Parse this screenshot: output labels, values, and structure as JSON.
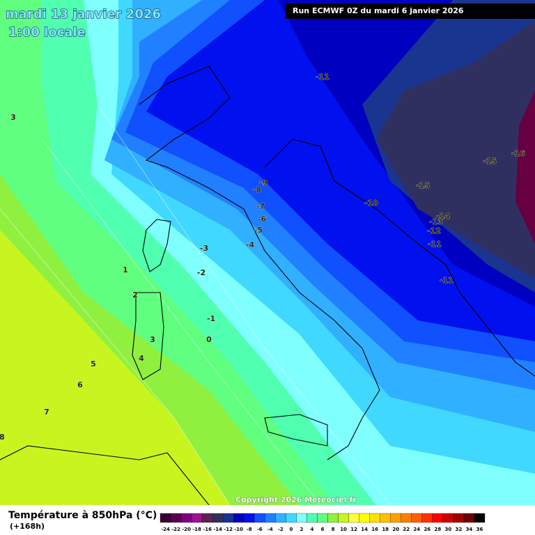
{
  "header": {
    "title": "mardi 13 janvier 2026",
    "time": "1:00 locale",
    "run": "Run ECMWF 0Z du mardi 6 janvier 2026"
  },
  "map": {
    "contour_labels": [
      -11,
      3,
      -16,
      -15,
      -15,
      -9,
      -8,
      -10,
      -7,
      -14,
      -6,
      -13,
      -5,
      -12,
      -4,
      -3,
      -11,
      1,
      -2,
      -11,
      2,
      -1,
      0,
      3,
      4,
      5,
      6,
      7,
      8
    ]
  },
  "footer": {
    "copyright": "Copyright 2026 Meteociel.fr",
    "legend_title": "Température à 850hPa (°C)",
    "lead_time": "(+168h)"
  },
  "colorbar": {
    "values": [
      -24,
      -22,
      -20,
      -18,
      -16,
      -14,
      -12,
      -10,
      -8,
      -6,
      -4,
      -2,
      0,
      2,
      4,
      6,
      8,
      10,
      12,
      14,
      16,
      18,
      20,
      22,
      24,
      26,
      28,
      30,
      32,
      34,
      36
    ],
    "colors": [
      "#3a0030",
      "#5a0050",
      "#800080",
      "#a01090",
      "#602050",
      "#303060",
      "#1a3590",
      "#0000c0",
      "#0010ee",
      "#1050ff",
      "#2080ff",
      "#30b0ff",
      "#40d8ff",
      "#80ffff",
      "#50ffb0",
      "#60ff80",
      "#90f040",
      "#c8f520",
      "#ffff40",
      "#ffff00",
      "#ffe000",
      "#ffc000",
      "#ffa000",
      "#ff8000",
      "#ff6000",
      "#ff3000",
      "#ff0000",
      "#d00000",
      "#a00000",
      "#700000",
      "#000000"
    ]
  }
}
